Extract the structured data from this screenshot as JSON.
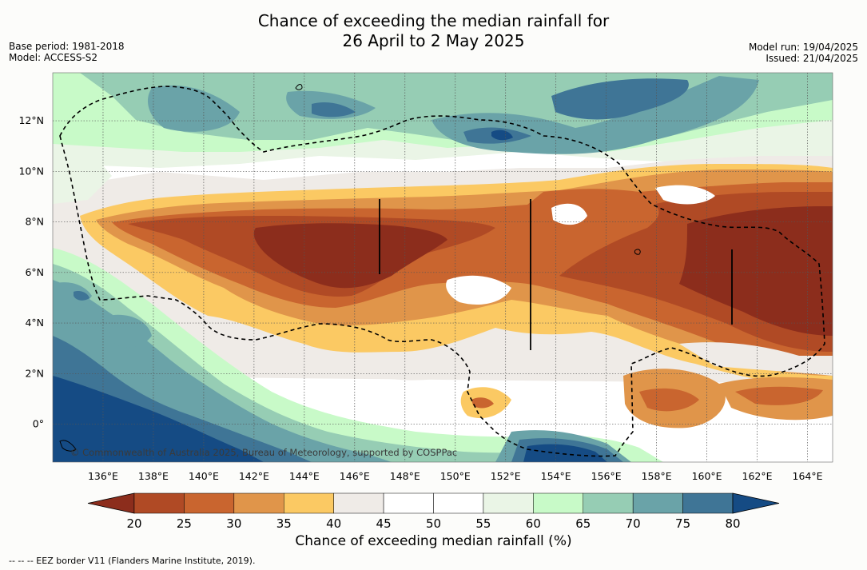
{
  "title": {
    "line1": "Chance of exceeding the median rainfall for",
    "line2": "26 April to 2 May 2025"
  },
  "meta_left": {
    "base_period": "Base period: 1981-2018",
    "model": "Model: ACCESS-S2"
  },
  "meta_right": {
    "model_run": "Model run: 19/04/2025",
    "issued": "Issued: 21/04/2025"
  },
  "map": {
    "lon_ticks": [
      "136°E",
      "138°E",
      "140°E",
      "142°E",
      "144°E",
      "146°E",
      "148°E",
      "150°E",
      "152°E",
      "154°E",
      "156°E",
      "158°E",
      "160°E",
      "162°E",
      "164°E"
    ],
    "lat_ticks": [
      "12°N",
      "10°N",
      "8°N",
      "6°N",
      "4°N",
      "2°N",
      "0°"
    ],
    "lon_range": [
      134.0,
      165.0
    ],
    "lat_range": [
      -1.5,
      13.9
    ],
    "copyright": "© Commonwealth of Australia 2025, Bureau of Meteorology, supported by COSPPac",
    "eez_style": "dashed black",
    "grid": true
  },
  "colorbar": {
    "title": "Chance of exceeding median rainfall (%)",
    "ticks": [
      "20",
      "25",
      "30",
      "35",
      "40",
      "45",
      "50",
      "55",
      "60",
      "65",
      "70",
      "75",
      "80"
    ],
    "bins": [
      {
        "range": "<20",
        "color": "#8c2d1c"
      },
      {
        "range": "20-25",
        "color": "#b04a25"
      },
      {
        "range": "25-30",
        "color": "#c9652f"
      },
      {
        "range": "30-35",
        "color": "#e0954a"
      },
      {
        "range": "35-40",
        "color": "#fbc963"
      },
      {
        "range": "40-45",
        "color": "#efebe7"
      },
      {
        "range": "45-50",
        "color": "#ffffff"
      },
      {
        "range": "50-55",
        "color": "#ffffff"
      },
      {
        "range": "55-60",
        "color": "#eaf5e6"
      },
      {
        "range": "60-65",
        "color": "#c8fac8"
      },
      {
        "range": "65-70",
        "color": "#96cdb4"
      },
      {
        "range": "70-75",
        "color": "#6aa3a8"
      },
      {
        "range": "75-80",
        "color": "#3f7596"
      },
      {
        "range": ">80",
        "color": "#154b84"
      }
    ]
  },
  "footnote": "--  --  -- EEZ border V11 (Flanders Marine Institute, 2019)."
}
